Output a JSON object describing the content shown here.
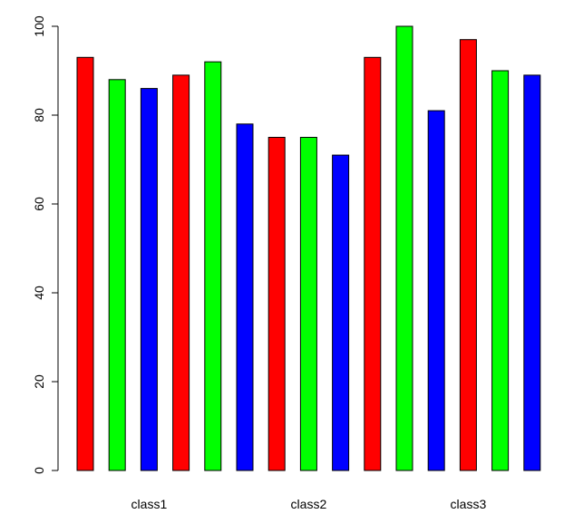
{
  "chart_data": {
    "type": "bar",
    "title": "",
    "xlabel": "",
    "ylabel": "",
    "ylim": [
      0,
      100
    ],
    "yticks": [
      "0",
      "20",
      "40",
      "60",
      "80",
      "100"
    ],
    "group_labels": [
      "class1",
      "class2",
      "class3"
    ],
    "bars": [
      {
        "value": 93,
        "color": "#ff0000"
      },
      {
        "value": 88,
        "color": "#00ff00"
      },
      {
        "value": 86,
        "color": "#0000ff"
      },
      {
        "value": 89,
        "color": "#ff0000"
      },
      {
        "value": 92,
        "color": "#00ff00"
      },
      {
        "value": 78,
        "color": "#0000ff"
      },
      {
        "value": 75,
        "color": "#ff0000"
      },
      {
        "value": 75,
        "color": "#00ff00"
      },
      {
        "value": 71,
        "color": "#0000ff"
      },
      {
        "value": 93,
        "color": "#ff0000"
      },
      {
        "value": 100,
        "color": "#00ff00"
      },
      {
        "value": 81,
        "color": "#0000ff"
      },
      {
        "value": 97,
        "color": "#ff0000"
      },
      {
        "value": 90,
        "color": "#00ff00"
      },
      {
        "value": 89,
        "color": "#0000ff"
      }
    ],
    "grid": false,
    "legend": "none"
  }
}
